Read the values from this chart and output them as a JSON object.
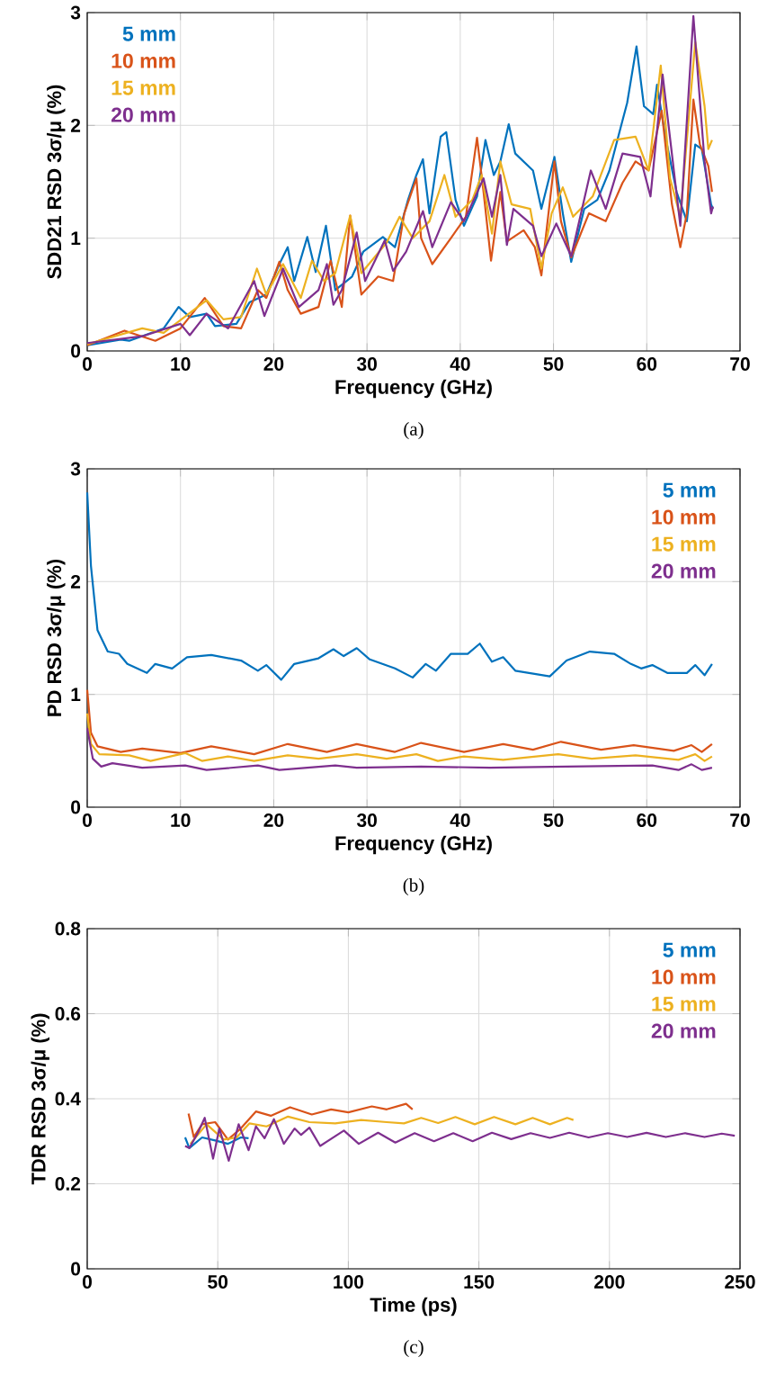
{
  "chart_data": [
    {
      "type": "line",
      "xlabel": "Frequency (GHz)",
      "ylabel": "SDD21 RSD 3σ/μ (%)",
      "annotations": [
        "(a)"
      ],
      "xlim": [
        0,
        70
      ],
      "ylim": [
        0,
        3
      ],
      "xticks": [
        0,
        10,
        20,
        30,
        40,
        50,
        60,
        70
      ],
      "yticks": [
        0,
        1,
        2,
        3
      ],
      "grid": true,
      "legend": "top left",
      "series": [
        {
          "name": "5 mm",
          "color": "#0072bd",
          "x": [
            0,
            3.6,
            4.5,
            8.2,
            9.8,
            11,
            12.8,
            13.7,
            16,
            17.4,
            19.2,
            20.6,
            21.5,
            22.2,
            23.6,
            24.5,
            25.6,
            26.6,
            28.4,
            29.6,
            31.7,
            33,
            34.4,
            35.3,
            36,
            36.7,
            37.9,
            38.5,
            39.5,
            40.4,
            41.8,
            42.7,
            43.6,
            44.3,
            45.2,
            45.9,
            47.8,
            48.7,
            50.1,
            51,
            51.9,
            53.3,
            54.7,
            56,
            57.2,
            57.9,
            58.9,
            59.7,
            60.7,
            61.1,
            62,
            63.2,
            64.3,
            65.2,
            65.9,
            66.9,
            67.1
          ],
          "values": [
            0.05,
            0.1,
            0.09,
            0.2,
            0.39,
            0.3,
            0.33,
            0.22,
            0.24,
            0.43,
            0.5,
            0.77,
            0.92,
            0.62,
            1.01,
            0.7,
            1.11,
            0.54,
            0.66,
            0.88,
            1.01,
            0.92,
            1.34,
            1.56,
            1.7,
            1.22,
            1.9,
            1.94,
            1.34,
            1.11,
            1.37,
            1.87,
            1.56,
            1.68,
            2.01,
            1.75,
            1.6,
            1.26,
            1.72,
            1.22,
            0.79,
            1.26,
            1.34,
            1.6,
            1.98,
            2.2,
            2.7,
            2.17,
            2.1,
            2.36,
            1.9,
            1.41,
            1.15,
            1.83,
            1.79,
            1.3,
            1.26
          ]
        },
        {
          "name": "10 mm",
          "color": "#d95319",
          "x": [
            0,
            4,
            7.3,
            10,
            12.6,
            14.6,
            16.5,
            18.3,
            19.2,
            20.6,
            21.5,
            22.9,
            24.8,
            26.1,
            27.3,
            28.2,
            29.4,
            31.2,
            32.8,
            34,
            35.3,
            35.8,
            37,
            39,
            40.6,
            41.8,
            42.5,
            43.3,
            44.3,
            45,
            46.8,
            48,
            48.7,
            50.1,
            50.8,
            51.9,
            53.8,
            55.6,
            57.4,
            58.8,
            60.2,
            61.6,
            62.7,
            63.6,
            64.3,
            65,
            65.7,
            66.6,
            67
          ],
          "values": [
            0.05,
            0.18,
            0.09,
            0.2,
            0.47,
            0.22,
            0.2,
            0.54,
            0.47,
            0.79,
            0.54,
            0.33,
            0.39,
            0.8,
            0.39,
            1.2,
            0.5,
            0.66,
            0.62,
            1.22,
            1.53,
            1.0,
            0.77,
            1.0,
            1.19,
            1.89,
            1.41,
            0.8,
            1.41,
            0.97,
            1.07,
            0.92,
            0.67,
            1.68,
            1.15,
            0.83,
            1.22,
            1.15,
            1.49,
            1.68,
            1.6,
            2.13,
            1.3,
            0.92,
            1.22,
            2.23,
            1.83,
            1.64,
            1.41
          ]
        },
        {
          "name": "15 mm",
          "color": "#edb120",
          "x": [
            0,
            5.9,
            8.2,
            12.8,
            14.6,
            16.5,
            18.2,
            19.2,
            21,
            22.9,
            24.1,
            25.4,
            26.6,
            28.2,
            29.4,
            32.1,
            33.5,
            34.9,
            36.7,
            38.3,
            39.5,
            41.3,
            42.3,
            43.4,
            44.3,
            45.5,
            47.5,
            48.7,
            49.8,
            51,
            52.1,
            54.2,
            56.5,
            58.8,
            60.2,
            61.5,
            62.5,
            63.6,
            65.2,
            66.2,
            66.6,
            67
          ],
          "values": [
            0.06,
            0.2,
            0.16,
            0.45,
            0.28,
            0.3,
            0.73,
            0.5,
            0.77,
            0.47,
            0.8,
            0.62,
            0.69,
            1.2,
            0.69,
            0.96,
            1.19,
            1.0,
            1.15,
            1.56,
            1.19,
            1.34,
            1.56,
            1.04,
            1.68,
            1.3,
            1.26,
            0.73,
            1.22,
            1.45,
            1.19,
            1.37,
            1.87,
            1.9,
            1.6,
            2.53,
            1.53,
            1.19,
            2.74,
            2.17,
            1.79,
            1.87
          ]
        },
        {
          "name": "20 mm",
          "color": "#7e2f8e",
          "x": [
            0,
            5.9,
            10,
            11,
            12.8,
            15.1,
            17.9,
            19,
            21,
            22.7,
            24.8,
            25.7,
            26.4,
            27.3,
            28.9,
            29.8,
            31.9,
            32.8,
            34.2,
            36,
            37,
            39,
            40.4,
            42.5,
            43.4,
            44.3,
            45,
            45.7,
            47.8,
            48.7,
            50.3,
            51.9,
            54,
            55.6,
            57.4,
            59.3,
            60.4,
            61.7,
            63.6,
            65,
            66.2,
            66.9,
            67.1
          ],
          "values": [
            0.07,
            0.13,
            0.24,
            0.14,
            0.33,
            0.2,
            0.62,
            0.31,
            0.73,
            0.39,
            0.54,
            0.77,
            0.41,
            0.54,
            1.05,
            0.62,
            0.98,
            0.71,
            0.88,
            1.24,
            0.92,
            1.32,
            1.15,
            1.53,
            1.19,
            1.56,
            0.94,
            1.26,
            1.11,
            0.84,
            1.13,
            0.84,
            1.6,
            1.26,
            1.75,
            1.72,
            1.37,
            2.45,
            1.11,
            2.97,
            1.68,
            1.22,
            1.28
          ]
        }
      ]
    },
    {
      "type": "line",
      "xlabel": "Frequency (GHz)",
      "ylabel": "PD RSD 3σ/μ (%)",
      "annotations": [
        "(b)"
      ],
      "xlim": [
        0,
        70
      ],
      "ylim": [
        0,
        3
      ],
      "xticks": [
        0,
        10,
        20,
        30,
        40,
        50,
        60,
        70
      ],
      "yticks": [
        0,
        1,
        2,
        3
      ],
      "grid": true,
      "legend": "top right",
      "series": [
        {
          "name": "5 mm",
          "color": "#0072bd",
          "x": [
            0,
            0.4,
            1.1,
            2.2,
            3.4,
            4.3,
            6.4,
            7.3,
            9.1,
            10.7,
            13.3,
            16.5,
            18.3,
            19.2,
            20.8,
            22.2,
            24.8,
            26.4,
            27.5,
            28.9,
            30.3,
            33,
            34.9,
            36.3,
            37.4,
            39,
            40.8,
            42.1,
            43.4,
            44.6,
            45.9,
            49.6,
            51.4,
            53.9,
            56.5,
            58.3,
            59.4,
            60.6,
            62.2,
            64.3,
            65.2,
            66.2,
            67
          ],
          "values": [
            2.79,
            2.14,
            1.57,
            1.38,
            1.36,
            1.27,
            1.19,
            1.27,
            1.23,
            1.33,
            1.35,
            1.3,
            1.21,
            1.26,
            1.13,
            1.27,
            1.32,
            1.4,
            1.34,
            1.41,
            1.31,
            1.23,
            1.15,
            1.27,
            1.21,
            1.36,
            1.36,
            1.45,
            1.29,
            1.33,
            1.21,
            1.16,
            1.3,
            1.38,
            1.36,
            1.27,
            1.23,
            1.26,
            1.19,
            1.19,
            1.26,
            1.17,
            1.27
          ]
        },
        {
          "name": "10 mm",
          "color": "#d95319",
          "x": [
            0,
            0.4,
            1.1,
            3.6,
            5.9,
            10,
            13.3,
            17.9,
            21.5,
            25.7,
            28.9,
            33,
            35.8,
            40.4,
            44.6,
            47.8,
            50.8,
            55.1,
            58.6,
            62.9,
            64.8,
            65.9,
            67
          ],
          "values": [
            1.04,
            0.66,
            0.54,
            0.49,
            0.52,
            0.48,
            0.54,
            0.47,
            0.56,
            0.49,
            0.56,
            0.49,
            0.57,
            0.49,
            0.56,
            0.51,
            0.58,
            0.51,
            0.55,
            0.5,
            0.55,
            0.49,
            0.56
          ]
        },
        {
          "name": "15 mm",
          "color": "#edb120",
          "x": [
            0,
            0.4,
            1.3,
            4.5,
            6.8,
            10.5,
            12.3,
            15.1,
            17.9,
            21.5,
            24.8,
            28.9,
            32.1,
            35.3,
            37.6,
            40.4,
            44.6,
            50.5,
            54.1,
            58.8,
            63.4,
            65.2,
            66.2,
            67
          ],
          "values": [
            0.83,
            0.56,
            0.47,
            0.46,
            0.41,
            0.48,
            0.41,
            0.45,
            0.41,
            0.46,
            0.43,
            0.47,
            0.43,
            0.47,
            0.41,
            0.45,
            0.42,
            0.47,
            0.43,
            0.46,
            0.42,
            0.47,
            0.41,
            0.45
          ]
        },
        {
          "name": "20 mm",
          "color": "#7e2f8e",
          "x": [
            0,
            0.6,
            1.5,
            2.7,
            5.9,
            10.5,
            12.8,
            18.3,
            20.6,
            26.6,
            28.9,
            35.8,
            43.2,
            51.4,
            60.6,
            63.4,
            64.8,
            65.9,
            67
          ],
          "values": [
            0.7,
            0.43,
            0.36,
            0.39,
            0.35,
            0.37,
            0.33,
            0.37,
            0.33,
            0.37,
            0.35,
            0.36,
            0.35,
            0.36,
            0.37,
            0.33,
            0.38,
            0.33,
            0.35
          ]
        }
      ]
    },
    {
      "type": "line",
      "xlabel": "Time (ps)",
      "ylabel": "TDR RSD 3σ/μ (%)",
      "annotations": [
        "(c)"
      ],
      "xlim": [
        0,
        250
      ],
      "ylim": [
        0,
        0.8
      ],
      "xticks": [
        0,
        50,
        100,
        150,
        200,
        250
      ],
      "yticks": [
        0,
        0.2,
        0.4,
        0.6,
        0.8
      ],
      "grid": true,
      "legend": "top right",
      "series": [
        {
          "name": "5 mm",
          "color": "#0072bd",
          "x": [
            37.5,
            39.1,
            44,
            49,
            53.9,
            58.8,
            61.8
          ],
          "values": [
            0.309,
            0.284,
            0.309,
            0.302,
            0.294,
            0.309,
            0.307
          ]
        },
        {
          "name": "10 mm",
          "color": "#d95319",
          "x": [
            38.8,
            40.8,
            44,
            49,
            53.9,
            58.8,
            64.6,
            70.3,
            77.7,
            86,
            93.4,
            100,
            109,
            114.7,
            122.1,
            124.6
          ],
          "values": [
            0.365,
            0.31,
            0.34,
            0.345,
            0.304,
            0.33,
            0.37,
            0.36,
            0.38,
            0.363,
            0.375,
            0.368,
            0.382,
            0.375,
            0.388,
            0.375
          ]
        },
        {
          "name": "15 mm",
          "color": "#edb120",
          "x": [
            39.5,
            45.7,
            52.3,
            57.2,
            62.1,
            68.7,
            76.9,
            85.1,
            95,
            104.9,
            114.7,
            121.3,
            127.9,
            134.4,
            141,
            148.4,
            155.8,
            164,
            170.6,
            177.2,
            183.8,
            186.2
          ],
          "values": [
            0.294,
            0.34,
            0.304,
            0.309,
            0.342,
            0.335,
            0.358,
            0.345,
            0.342,
            0.35,
            0.345,
            0.342,
            0.355,
            0.343,
            0.357,
            0.34,
            0.357,
            0.34,
            0.355,
            0.34,
            0.355,
            0.35
          ]
        },
        {
          "name": "20 mm",
          "color": "#7e2f8e",
          "x": [
            37.5,
            39.1,
            42.4,
            45,
            48.2,
            50.6,
            54.2,
            58,
            61.8,
            64.6,
            67.9,
            71.5,
            75.3,
            79.4,
            81.9,
            85.1,
            89.2,
            98.3,
            104,
            111.4,
            118,
            125.4,
            132.8,
            140.2,
            147.6,
            155,
            162.4,
            169.8,
            177.2,
            184.6,
            192,
            199.4,
            206.8,
            214.2,
            221.6,
            229,
            236.4,
            243,
            248
          ],
          "values": [
            0.289,
            0.284,
            0.32,
            0.355,
            0.259,
            0.33,
            0.254,
            0.34,
            0.279,
            0.335,
            0.307,
            0.352,
            0.294,
            0.33,
            0.315,
            0.332,
            0.289,
            0.325,
            0.294,
            0.32,
            0.297,
            0.319,
            0.3,
            0.319,
            0.3,
            0.32,
            0.305,
            0.319,
            0.308,
            0.32,
            0.309,
            0.319,
            0.31,
            0.32,
            0.31,
            0.319,
            0.31,
            0.318,
            0.313
          ]
        }
      ]
    }
  ]
}
